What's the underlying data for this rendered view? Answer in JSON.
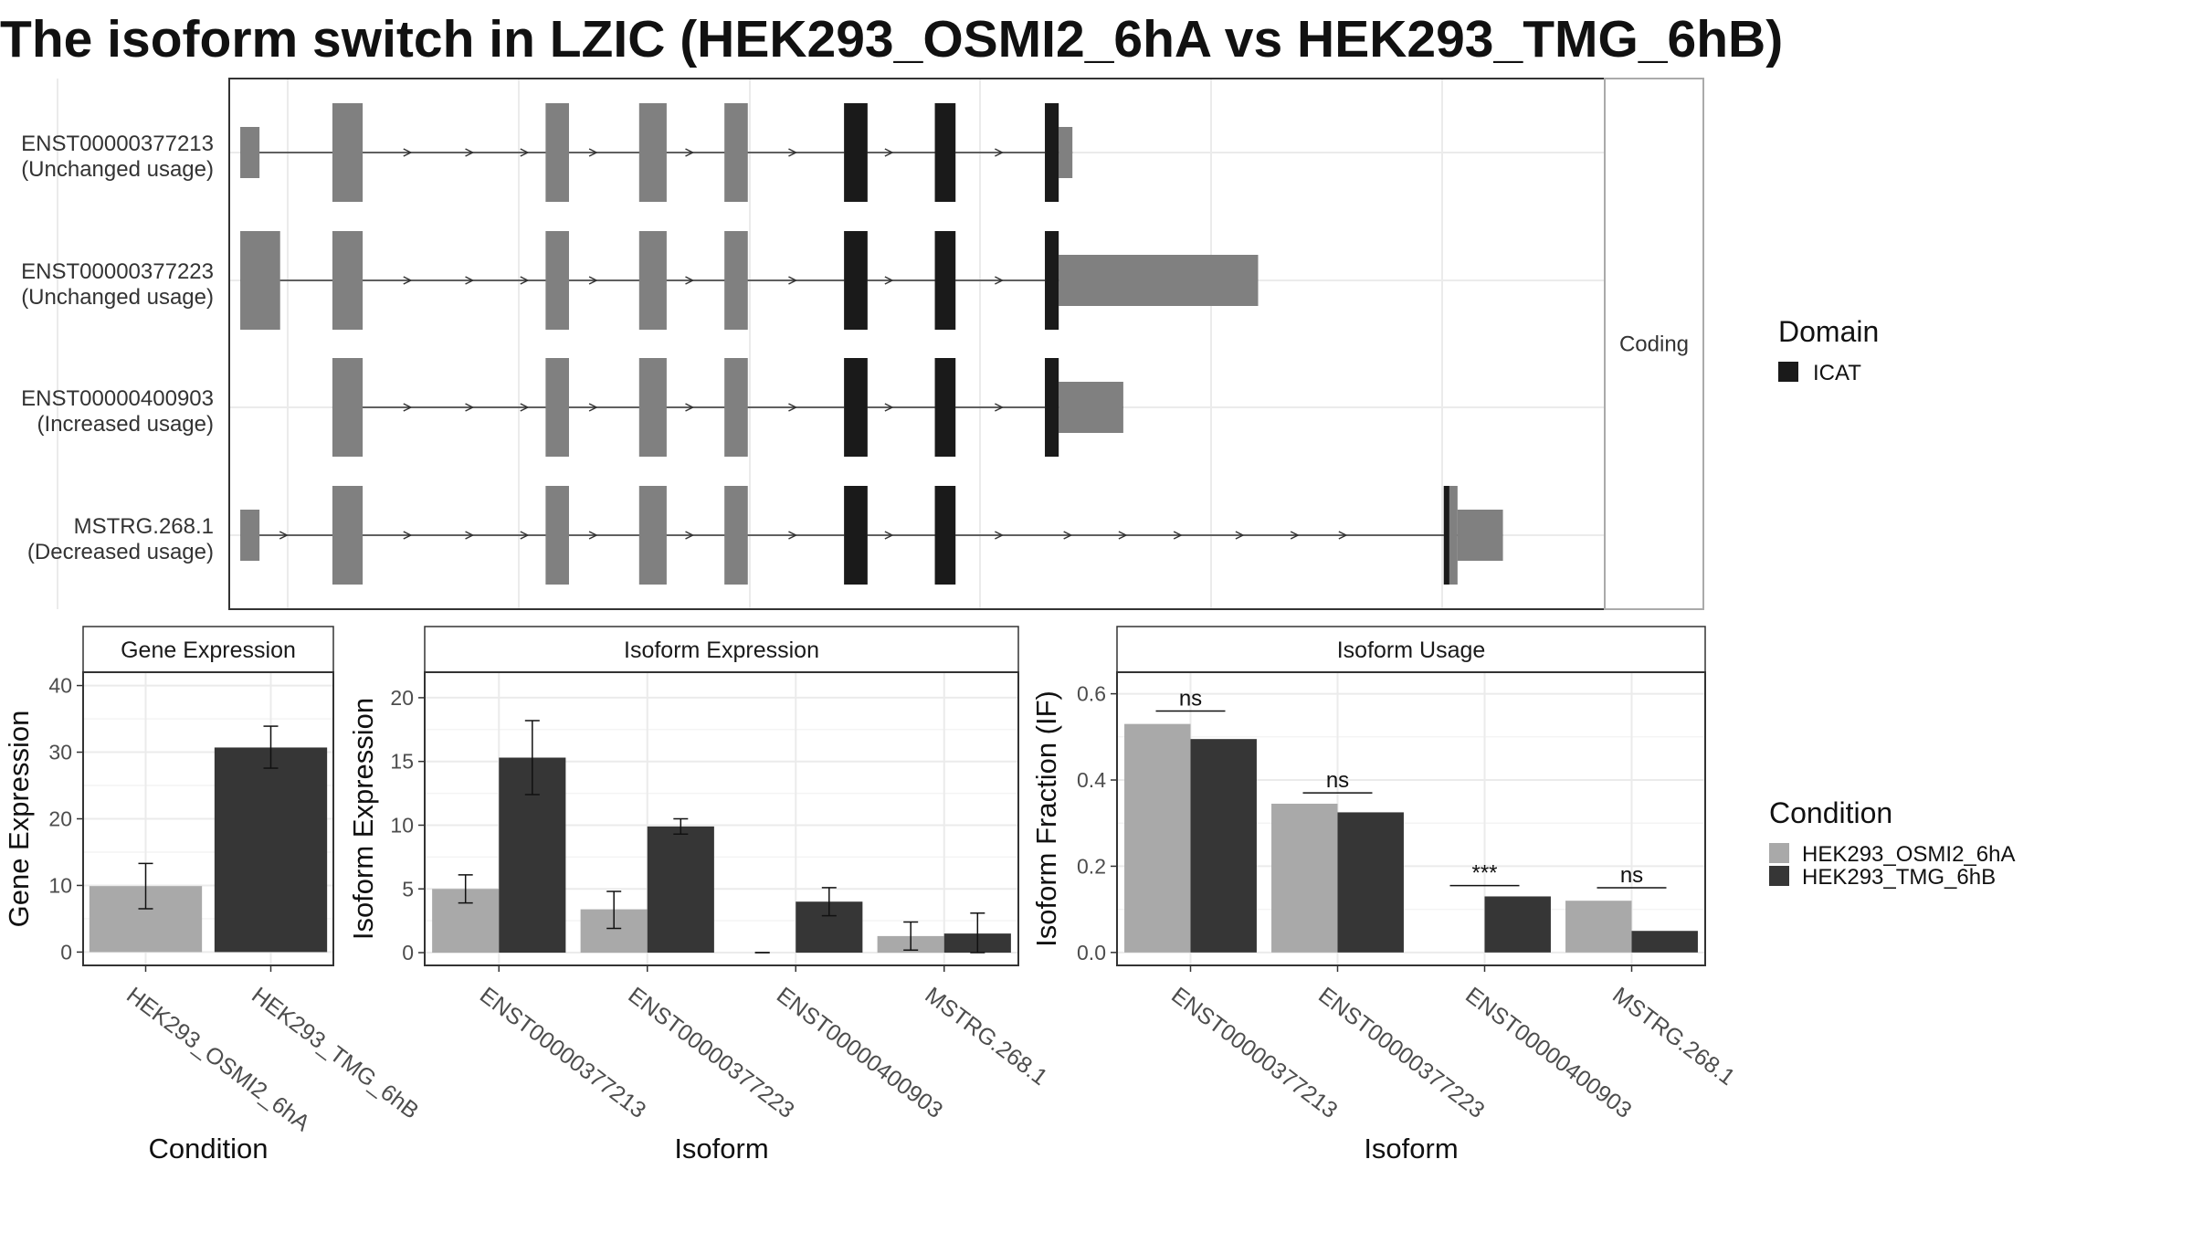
{
  "title": "The isoform switch in LZIC (HEK293_OSMI2_6hA vs HEK293_TMG_6hB)",
  "colors": {
    "exon_noncoding": "#808080",
    "domain_icat": "#1a1a1a",
    "condition_a": "#a9a9a9",
    "condition_b": "#363636",
    "panel_border": "#333333",
    "strip_border": "#aaaaaa",
    "grid": "#ebebeb",
    "intron": "#333333"
  },
  "transcript_panel": {
    "strip_label": "Coding",
    "legend": {
      "title": "Domain",
      "items": [
        {
          "label": "ICAT",
          "color": "#1a1a1a"
        }
      ]
    },
    "xlim": [
      0,
      1000
    ],
    "transcripts": [
      {
        "id": "ENST00000377213",
        "usage": "(Unchanged usage)",
        "exons": [
          [
            8,
            22
          ],
          [
            75,
            97
          ],
          [
            230,
            247
          ],
          [
            298,
            318
          ],
          [
            360,
            377
          ],
          [
            447,
            464
          ],
          [
            513,
            528
          ],
          [
            593,
            603
          ],
          [
            603,
            613
          ]
        ],
        "icat": [
          [
            447,
            464
          ],
          [
            513,
            528
          ],
          [
            593,
            603
          ]
        ],
        "arrows": [
          80,
          130,
          175,
          215,
          265,
          335,
          410,
          480,
          560
        ]
      },
      {
        "id": "ENST00000377223",
        "usage": "(Unchanged usage)",
        "exons": [
          [
            8,
            37
          ],
          [
            75,
            97
          ],
          [
            230,
            247
          ],
          [
            298,
            318
          ],
          [
            360,
            377
          ],
          [
            447,
            464
          ],
          [
            513,
            528
          ],
          [
            593,
            603
          ],
          [
            603,
            748
          ]
        ],
        "icat": [
          [
            447,
            464
          ],
          [
            513,
            528
          ],
          [
            593,
            603
          ]
        ],
        "arrows": [
          130,
          175,
          215,
          265,
          335,
          410,
          480,
          560
        ]
      },
      {
        "id": "ENST00000400903",
        "usage": "(Increased usage)",
        "exons": [
          [
            75,
            97
          ],
          [
            230,
            247
          ],
          [
            298,
            318
          ],
          [
            360,
            377
          ],
          [
            447,
            464
          ],
          [
            513,
            528
          ],
          [
            593,
            603
          ],
          [
            603,
            650
          ]
        ],
        "icat": [
          [
            447,
            464
          ],
          [
            513,
            528
          ],
          [
            593,
            603
          ]
        ],
        "arrows": [
          130,
          175,
          215,
          265,
          335,
          410,
          480,
          560
        ]
      },
      {
        "id": "MSTRG.268.1",
        "usage": "(Decreased usage)",
        "exons": [
          [
            8,
            22
          ],
          [
            75,
            97
          ],
          [
            230,
            247
          ],
          [
            298,
            318
          ],
          [
            360,
            377
          ],
          [
            447,
            464
          ],
          [
            513,
            528
          ],
          [
            883,
            893
          ],
          [
            893,
            926
          ]
        ],
        "icat": [
          [
            447,
            464
          ],
          [
            513,
            528
          ],
          [
            883,
            887
          ]
        ],
        "arrows": [
          40,
          80,
          130,
          175,
          215,
          265,
          335,
          410,
          480,
          560,
          610,
          650,
          690,
          735,
          775,
          810
        ]
      }
    ]
  },
  "chart_data": [
    {
      "type": "bar",
      "title": "Gene Expression",
      "xlabel": "Condition",
      "ylabel": "Gene Expression",
      "ylim": [
        -2,
        42
      ],
      "yticks": [
        0,
        10,
        20,
        30,
        40
      ],
      "categories": [
        "HEK293_OSMI2_6hA",
        "HEK293_TMG_6hB"
      ],
      "values": [
        9.9,
        30.7
      ],
      "errors": [
        [
          6.5,
          13.3
        ],
        [
          27.6,
          33.9
        ]
      ],
      "fills": [
        "#a9a9a9",
        "#363636"
      ]
    },
    {
      "type": "bar",
      "title": "Isoform Expression",
      "xlabel": "Isoform",
      "ylabel": "Isoform Expression",
      "ylim": [
        -1,
        22
      ],
      "yticks": [
        0,
        5,
        10,
        15,
        20
      ],
      "categories": [
        "ENST00000377213",
        "ENST00000377223",
        "ENST00000400903",
        "MSTRG.268.1"
      ],
      "series": [
        {
          "name": "HEK293_OSMI2_6hA",
          "values": [
            5.0,
            3.4,
            0.0,
            1.3
          ],
          "errors": [
            [
              3.9,
              6.1
            ],
            [
              1.9,
              4.8
            ],
            [
              0.0,
              0.0
            ],
            [
              0.2,
              2.4
            ]
          ]
        },
        {
          "name": "HEK293_TMG_6hB",
          "values": [
            15.3,
            9.9,
            4.0,
            1.5
          ],
          "errors": [
            [
              12.4,
              18.2
            ],
            [
              9.3,
              10.5
            ],
            [
              2.9,
              5.1
            ],
            [
              0.0,
              3.1
            ]
          ]
        }
      ]
    },
    {
      "type": "bar",
      "title": "Isoform Usage",
      "xlabel": "Isoform",
      "ylabel": "Isoform Fraction (IF)",
      "ylim": [
        -0.03,
        0.65
      ],
      "yticks": [
        0.0,
        0.2,
        0.4,
        0.6
      ],
      "ytick_labels": [
        "0.0",
        "0.2",
        "0.4",
        "0.6"
      ],
      "categories": [
        "ENST00000377213",
        "ENST00000377223",
        "ENST00000400903",
        "MSTRG.268.1"
      ],
      "series": [
        {
          "name": "HEK293_OSMI2_6hA",
          "values": [
            0.53,
            0.345,
            0.0,
            0.12
          ]
        },
        {
          "name": "HEK293_TMG_6hB",
          "values": [
            0.495,
            0.325,
            0.13,
            0.05
          ]
        }
      ],
      "significance": [
        "ns",
        "ns",
        "***",
        "ns"
      ],
      "significance_y": [
        0.56,
        0.37,
        0.155,
        0.15
      ]
    }
  ],
  "condition_legend": {
    "title": "Condition",
    "items": [
      {
        "label": "HEK293_OSMI2_6hA",
        "color": "#a9a9a9"
      },
      {
        "label": "HEK293_TMG_6hB",
        "color": "#363636"
      }
    ]
  }
}
